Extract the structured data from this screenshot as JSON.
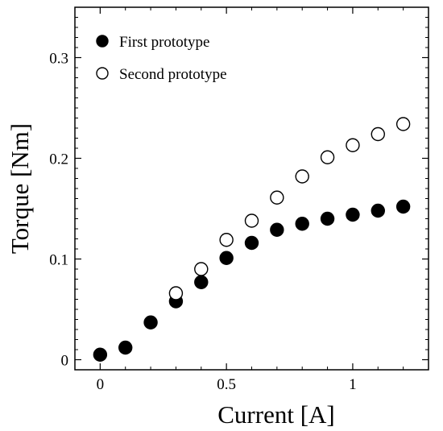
{
  "chart_data": {
    "type": "scatter",
    "title": "",
    "xlabel": "Current [A]",
    "ylabel": "Torque [Nm]",
    "xlim": [
      -0.1,
      1.3
    ],
    "ylim": [
      -0.01,
      0.35
    ],
    "xticks": [
      0,
      0.5,
      1
    ],
    "xtick_labels": [
      "0",
      "0.5",
      "1"
    ],
    "yticks": [
      0,
      0.1,
      0.2,
      0.3
    ],
    "ytick_labels": [
      "0",
      "0.1",
      "0.2",
      "0.3"
    ],
    "grid": false,
    "legend_position": "top-left",
    "series": [
      {
        "name": "First prototype",
        "marker": "filled-circle",
        "color": "#000000",
        "x": [
          0,
          0.1,
          0.2,
          0.3,
          0.4,
          0.5,
          0.6,
          0.7,
          0.8,
          0.9,
          1.0,
          1.1,
          1.2
        ],
        "y": [
          0.005,
          0.012,
          0.037,
          0.058,
          0.077,
          0.101,
          0.116,
          0.129,
          0.135,
          0.14,
          0.144,
          0.148,
          0.152
        ]
      },
      {
        "name": "Second prototype",
        "marker": "open-circle",
        "color": "#000000",
        "x": [
          0.3,
          0.4,
          0.5,
          0.6,
          0.7,
          0.8,
          0.9,
          1.0,
          1.1,
          1.2
        ],
        "y": [
          0.066,
          0.09,
          0.119,
          0.138,
          0.161,
          0.182,
          0.201,
          0.213,
          0.224,
          0.234
        ]
      }
    ]
  }
}
